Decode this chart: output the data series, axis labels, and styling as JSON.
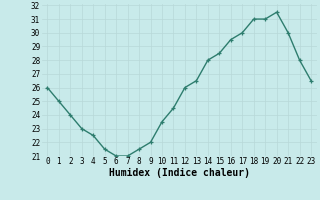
{
  "x": [
    0,
    1,
    2,
    3,
    4,
    5,
    6,
    7,
    8,
    9,
    10,
    11,
    12,
    13,
    14,
    15,
    16,
    17,
    18,
    19,
    20,
    21,
    22,
    23
  ],
  "y": [
    26,
    25,
    24,
    23,
    22.5,
    21.5,
    21,
    21,
    21.5,
    22,
    23.5,
    24.5,
    26,
    26.5,
    28,
    28.5,
    29.5,
    30,
    31,
    31,
    31.5,
    30,
    28,
    26.5
  ],
  "line_color": "#2e7d6e",
  "marker": "+",
  "marker_size": 3,
  "marker_edge_width": 0.9,
  "background_color": "#c8eaea",
  "grid_color": "#b8d8d8",
  "xlabel": "Humidex (Indice chaleur)",
  "xlabel_fontsize": 7,
  "ylim": [
    21,
    32
  ],
  "xlim": [
    -0.5,
    23.5
  ],
  "yticks": [
    21,
    22,
    23,
    24,
    25,
    26,
    27,
    28,
    29,
    30,
    31,
    32
  ],
  "xtick_labels": [
    "0",
    "1",
    "2",
    "3",
    "4",
    "5",
    "6",
    "7",
    "8",
    "9",
    "10",
    "11",
    "12",
    "13",
    "14",
    "15",
    "16",
    "17",
    "18",
    "19",
    "20",
    "21",
    "22",
    "23"
  ],
  "tick_fontsize": 5.5,
  "line_width": 1.0
}
